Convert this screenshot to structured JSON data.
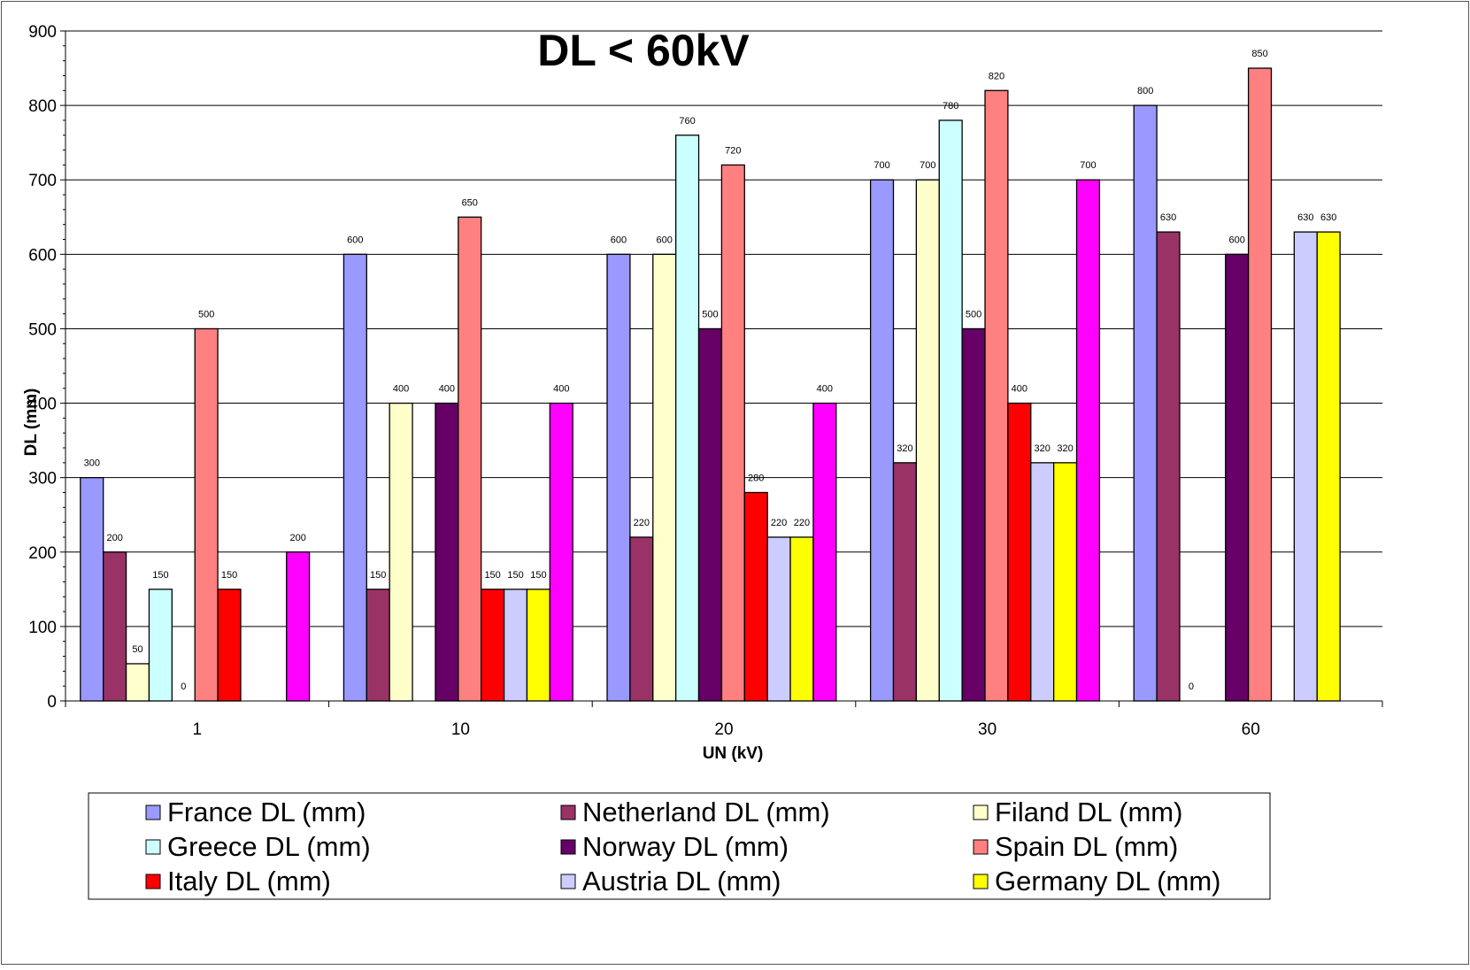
{
  "chart_data": {
    "type": "bar",
    "title": "DL < 60kV",
    "xlabel": "UN (kV)",
    "ylabel": "DL (mm)",
    "ylim": [
      0,
      900
    ],
    "yticks": [
      0,
      100,
      200,
      300,
      400,
      500,
      600,
      700,
      800,
      900
    ],
    "grid": true,
    "legend_position": "bottom",
    "categories": [
      "1",
      "10",
      "20",
      "30",
      "60"
    ],
    "series": [
      {
        "name": "France DL (mm)",
        "color": "#9999FF",
        "values": [
          300,
          600,
          600,
          700,
          800
        ]
      },
      {
        "name": "Netherland DL (mm)",
        "color": "#993366",
        "values": [
          200,
          150,
          220,
          320,
          630
        ]
      },
      {
        "name": "Filand DL (mm)",
        "color": "#FFFFCC",
        "values": [
          50,
          400,
          600,
          700,
          0
        ]
      },
      {
        "name": "Greece DL (mm)",
        "color": "#CCFFFF",
        "values": [
          150,
          null,
          760,
          780,
          null
        ]
      },
      {
        "name": "Norway DL (mm)",
        "color": "#660066",
        "values": [
          0,
          400,
          500,
          500,
          600
        ]
      },
      {
        "name": "Spain DL (mm)",
        "color": "#FF8080",
        "values": [
          500,
          650,
          720,
          820,
          850
        ]
      },
      {
        "name": "Italy DL (mm)",
        "color": "#FF0000",
        "values": [
          150,
          150,
          280,
          400,
          null
        ]
      },
      {
        "name": "Austria DL (mm)",
        "color": "#CCCCFF",
        "values": [
          null,
          150,
          220,
          320,
          630
        ]
      },
      {
        "name": "Germany DL (mm)",
        "color": "#FFFF00",
        "values": [
          null,
          150,
          220,
          320,
          630
        ]
      },
      {
        "name": "",
        "color": "#FF00FF",
        "values": [
          200,
          400,
          400,
          700,
          null
        ]
      }
    ]
  }
}
